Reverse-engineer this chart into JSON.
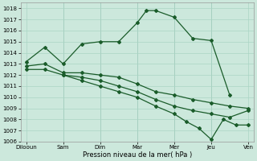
{
  "background_color": "#cce8dc",
  "grid_color": "#aad4c4",
  "line_color": "#1a5c2a",
  "xlabel": "Pression niveau de la mer( hPa )",
  "ylim": [
    1006,
    1018.5
  ],
  "xtick_positions": [
    0,
    1,
    2,
    3,
    4,
    5,
    6
  ],
  "xtick_labels": [
    "Dilooun",
    "Sam",
    "Dim",
    "Mar",
    "Mer",
    "Jeu",
    "Ven"
  ],
  "series": [
    {
      "x": [
        0,
        0.5,
        1.0,
        1.5,
        2.0,
        2.5,
        3.0,
        3.25,
        3.5,
        4.0,
        4.5,
        5.0,
        5.5
      ],
      "y": [
        1013.2,
        1014.5,
        1013.0,
        1014.8,
        1015.0,
        1015.0,
        1016.7,
        1017.8,
        1017.8,
        1017.2,
        1015.3,
        1015.1,
        1010.2
      ]
    },
    {
      "x": [
        0,
        0.5,
        1.0,
        1.5,
        2.0,
        2.5,
        3.0,
        3.5,
        4.0,
        4.5,
        5.0,
        5.5,
        6.0
      ],
      "y": [
        1012.8,
        1013.0,
        1012.2,
        1012.2,
        1012.0,
        1011.8,
        1011.2,
        1010.5,
        1010.2,
        1009.8,
        1009.5,
        1009.2,
        1009.0
      ]
    },
    {
      "x": [
        0,
        0.5,
        1.0,
        1.5,
        2.0,
        2.5,
        3.0,
        3.5,
        4.0,
        4.5,
        5.0,
        5.5,
        6.0
      ],
      "y": [
        1012.5,
        1012.5,
        1012.0,
        1011.8,
        1011.5,
        1011.0,
        1010.5,
        1009.8,
        1009.2,
        1008.8,
        1008.5,
        1008.2,
        1008.8
      ]
    },
    {
      "x": [
        1.0,
        1.5,
        2.0,
        2.5,
        3.0,
        3.5,
        4.0,
        4.33,
        4.67,
        5.0,
        5.33,
        5.67,
        6.0
      ],
      "y": [
        1012.0,
        1011.5,
        1011.0,
        1010.5,
        1010.0,
        1009.2,
        1008.5,
        1007.8,
        1007.2,
        1006.2,
        1008.0,
        1007.5,
        1007.5
      ]
    }
  ]
}
